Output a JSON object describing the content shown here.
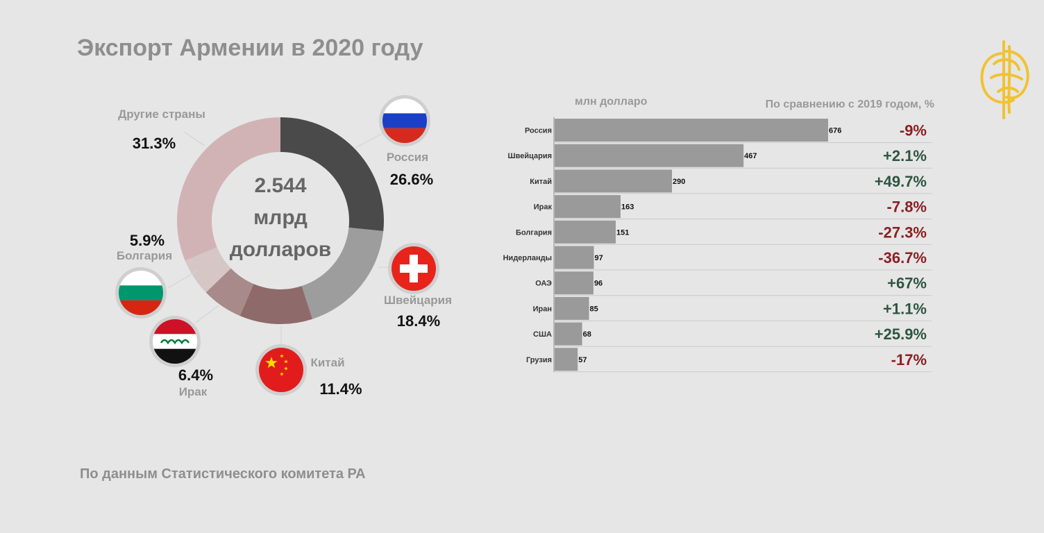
{
  "title": "Экспорт Армении в 2020 году",
  "source": "По данным Статистического комитета РА",
  "colors": {
    "negative": "#8b1f22",
    "positive": "#2e5541",
    "bar": "#9a9a9a"
  },
  "chart_data": [
    {
      "type": "pie",
      "center_text": [
        "2.544",
        "млрд",
        "долларов"
      ],
      "slices": [
        {
          "name": "Россия",
          "value": 26.6,
          "label": "26.6%",
          "color": "#4a4a4a",
          "flag": "russia-flag-icon"
        },
        {
          "name": "Швейцария",
          "value": 18.4,
          "label": "18.4%",
          "color": "#9d9d9d",
          "flag": "switzerland-flag-icon"
        },
        {
          "name": "Китай",
          "value": 11.4,
          "label": "11.4%",
          "color": "#8e6a6a",
          "flag": "china-flag-icon"
        },
        {
          "name": "Ирак",
          "value": 6.4,
          "label": "6.4%",
          "color": "#a88a8a",
          "flag": "iraq-flag-icon"
        },
        {
          "name": "Болгария",
          "value": 5.9,
          "label": "5.9%",
          "color": "#d6c6c6",
          "flag": "bulgaria-flag-icon"
        },
        {
          "name": "Другие страны",
          "value": 31.3,
          "label": "31.3%",
          "color": "#d2b3b5"
        }
      ]
    },
    {
      "type": "bar",
      "unit_label": "млн долларо",
      "change_header": "По сравнению с 2019 годом, %",
      "categories": [
        "Россия",
        "Швейцария",
        "Китай",
        "Ирак",
        "Болгария",
        "Нидерланды",
        "ОАЭ",
        "Иран",
        "США",
        "Грузия"
      ],
      "values": [
        676,
        467,
        290,
        163,
        151,
        97,
        96,
        85,
        68,
        57
      ],
      "changes": [
        "-9%",
        "+2.1%",
        "+49.7%",
        "-7.8%",
        "-27.3%",
        "-36.7%",
        "+67%",
        "+1.1%",
        "+25.9%",
        "-17%"
      ]
    }
  ]
}
